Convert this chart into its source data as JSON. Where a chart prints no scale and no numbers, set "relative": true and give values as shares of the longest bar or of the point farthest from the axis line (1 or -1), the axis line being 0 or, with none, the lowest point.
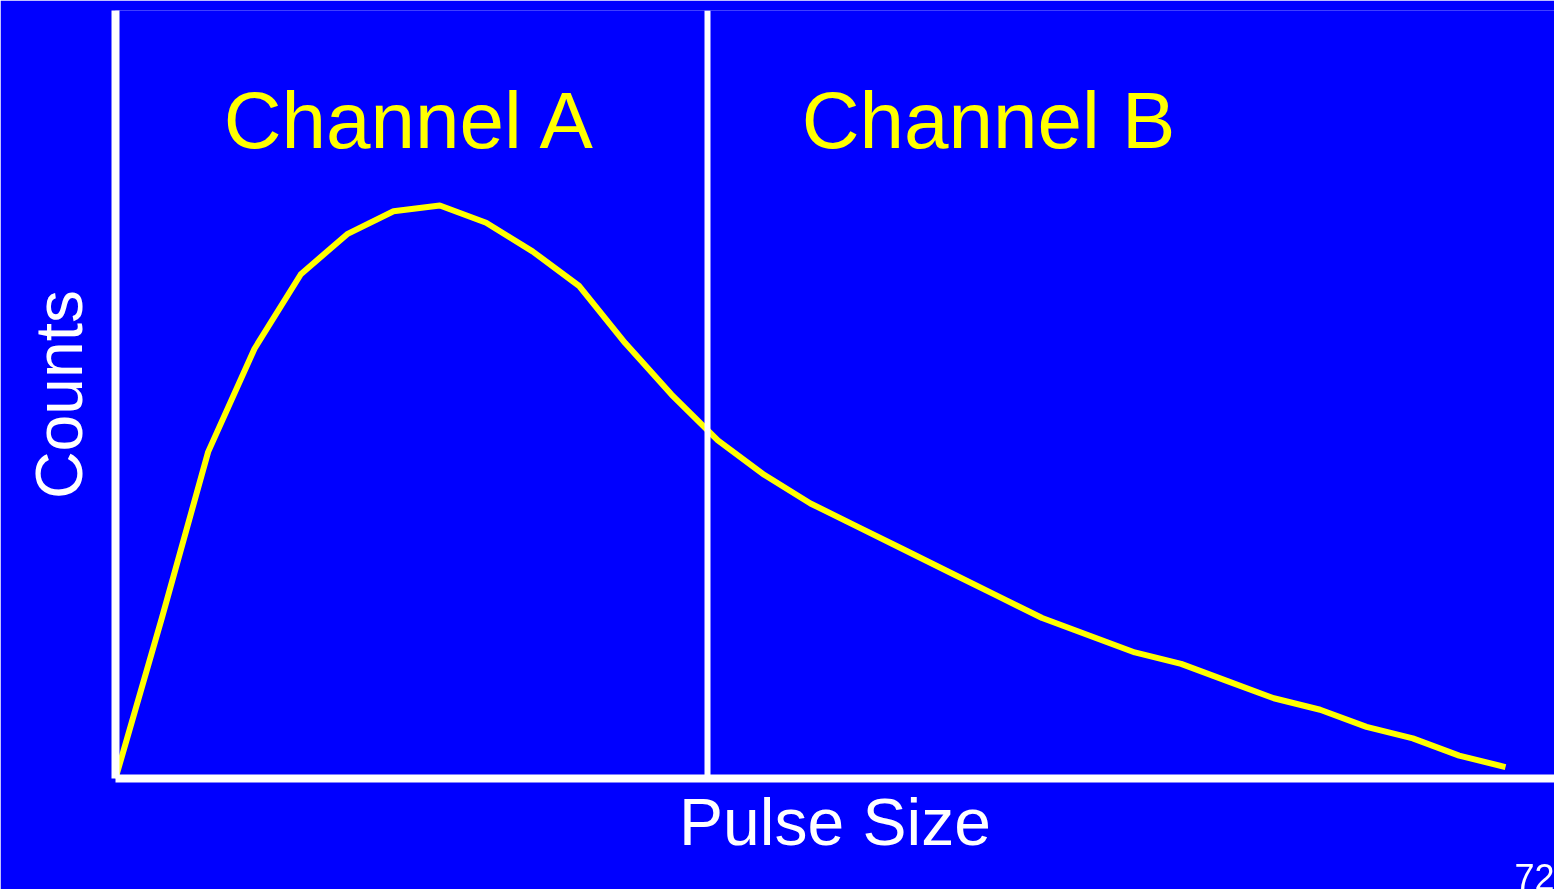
{
  "chart_data": {
    "type": "line",
    "relative": true,
    "xlabel": "Pulse Size",
    "ylabel": "Counts",
    "categories": [
      null,
      null,
      null,
      null,
      null,
      null,
      null,
      null,
      null,
      null,
      null,
      null,
      null,
      null,
      null,
      null,
      null,
      null,
      null,
      null,
      null,
      null,
      null,
      null,
      null,
      null,
      null,
      null,
      null,
      null,
      null
    ],
    "series": [
      {
        "color": "#ffff00",
        "values": [
          0,
          0.28,
          0.57,
          0.75,
          0.88,
          0.95,
          0.99,
          1.0,
          0.97,
          0.92,
          0.86,
          0.76,
          0.67,
          0.59,
          0.53,
          0.48,
          0.44,
          0.4,
          0.36,
          0.32,
          0.28,
          0.25,
          0.22,
          0.2,
          0.17,
          0.14,
          0.12,
          0.09,
          0.07,
          0.04,
          0.02
        ]
      }
    ],
    "annotations": [
      "Channel A",
      "Channel B",
      "72"
    ],
    "grid": false,
    "marker": "none",
    "line_style": "solid"
  }
}
